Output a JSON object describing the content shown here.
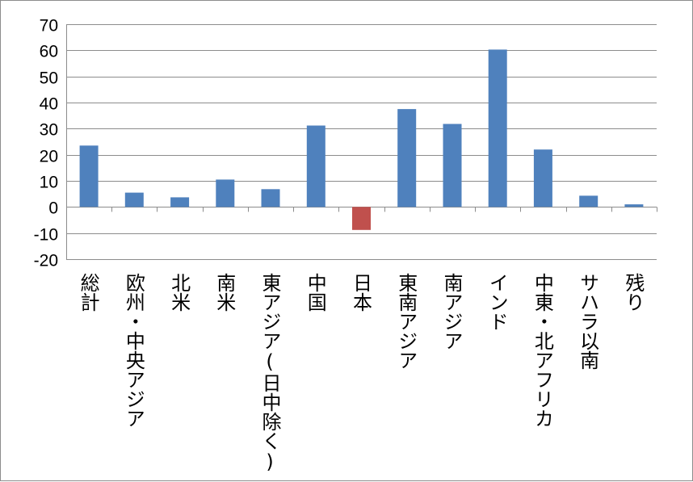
{
  "chart_data": {
    "type": "bar",
    "categories": [
      "総計",
      "欧州・中央アジア",
      "北米",
      "南米",
      "東アジア(日中除く)",
      "中国",
      "日本",
      "東南アジア",
      "南アジア",
      "インド",
      "中東・北アフリカ",
      "サハラ以南",
      "残り"
    ],
    "values": [
      23.5,
      5.5,
      3.7,
      10.5,
      6.8,
      31.2,
      -8.8,
      37.5,
      31.8,
      60.3,
      22,
      4.3,
      1
    ],
    "title": "",
    "xlabel": "",
    "ylabel": "",
    "ylim": [
      -20,
      70
    ],
    "yticks": [
      70,
      60,
      50,
      40,
      30,
      20,
      10,
      0,
      -10,
      -20
    ],
    "grid": true,
    "legend": "none",
    "colors": {
      "positive": "#4f81bd",
      "negative": "#c0504d",
      "grid": "#8c8c8c"
    }
  }
}
